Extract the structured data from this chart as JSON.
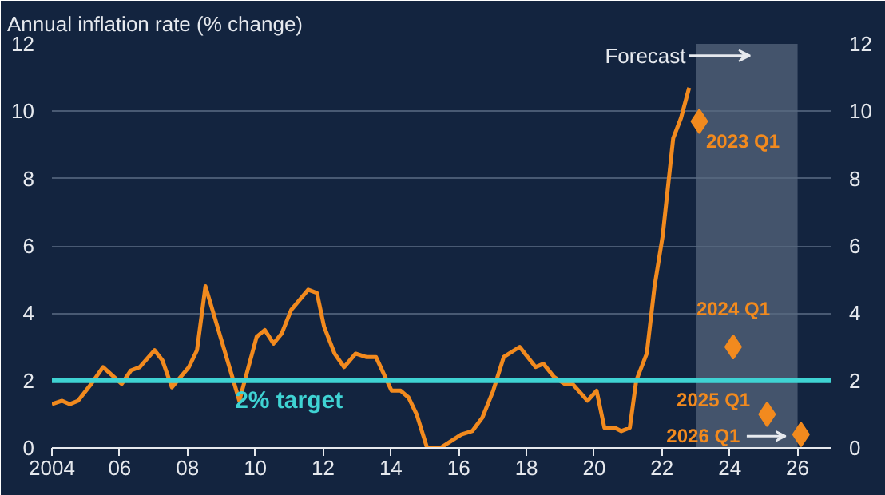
{
  "chart_data": {
    "type": "line",
    "title": "Annual inflation rate (% change)",
    "series": [
      {
        "type": "line",
        "color": "#f28a1e",
        "x": [
          2004.0,
          2004.3,
          2004.53,
          2004.77,
          2005.16,
          2005.51,
          2006.06,
          2006.33,
          2006.59,
          2007.03,
          2007.26,
          2007.54,
          2008.04,
          2008.28,
          2008.53,
          2009.06,
          2009.53,
          2010.04,
          2010.28,
          2010.54,
          2010.78,
          2011.06,
          2011.56,
          2011.82,
          2012.03,
          2012.34,
          2012.62,
          2012.96,
          2013.27,
          2013.56,
          2014.02,
          2014.29,
          2014.52,
          2014.76,
          2015.07,
          2015.46,
          2016.08,
          2016.4,
          2016.7,
          2017.02,
          2017.33,
          2017.8,
          2018.27,
          2018.5,
          2018.82,
          2019.13,
          2019.36,
          2019.8,
          2020.07,
          2020.3,
          2020.61,
          2020.8,
          2021.05,
          2021.24,
          2021.55,
          2021.78,
          2022.02,
          2022.33,
          2022.56,
          2022.8
        ],
        "values": [
          1.3,
          1.4,
          1.3,
          1.4,
          1.9,
          2.4,
          1.9,
          2.3,
          2.4,
          2.9,
          2.6,
          1.8,
          2.4,
          2.9,
          4.8,
          3.0,
          1.4,
          3.3,
          3.5,
          3.1,
          3.4,
          4.1,
          4.7,
          4.6,
          3.6,
          2.8,
          2.4,
          2.8,
          2.7,
          2.7,
          1.7,
          1.7,
          1.5,
          1.0,
          0.0,
          0.0,
          0.4,
          0.5,
          0.9,
          1.7,
          2.7,
          3.0,
          2.4,
          2.5,
          2.1,
          1.9,
          1.9,
          1.4,
          1.7,
          0.6,
          0.6,
          0.5,
          0.6,
          2.0,
          2.8,
          4.8,
          6.3,
          9.2,
          9.8,
          10.7
        ]
      },
      {
        "type": "scatter",
        "marker": "diamond",
        "color": "#f28a1e",
        "x": [
          2023.1,
          2024.1,
          2025.1,
          2026.1
        ],
        "values": [
          9.7,
          3.0,
          1.0,
          0.4
        ]
      }
    ],
    "xlim": [
      2004,
      2027
    ],
    "xticks": [
      {
        "value": 2004,
        "label": "2004"
      },
      {
        "value": 2006,
        "label": "06"
      },
      {
        "value": 2008,
        "label": "08"
      },
      {
        "value": 2010,
        "label": "10"
      },
      {
        "value": 2012,
        "label": "12"
      },
      {
        "value": 2014,
        "label": "14"
      },
      {
        "value": 2016,
        "label": "16"
      },
      {
        "value": 2018,
        "label": "18"
      },
      {
        "value": 2020,
        "label": "20"
      },
      {
        "value": 2022,
        "label": "22"
      },
      {
        "value": 2024,
        "label": "24"
      },
      {
        "value": 2026,
        "label": "26"
      }
    ],
    "ylim": [
      0,
      12
    ],
    "yticks": [
      0,
      2,
      4,
      6,
      8,
      10,
      12
    ],
    "y2lim": [
      0,
      12
    ],
    "y2ticks": [
      0,
      2,
      4,
      6,
      8,
      10,
      12
    ],
    "grid": "y",
    "ref_lines": [
      {
        "axis": "y",
        "value": 2,
        "label": "2% target",
        "color": "#3fd3d3"
      }
    ],
    "bands": [
      {
        "axis": "x",
        "from": 2023,
        "to": 2026,
        "label": "Forecast",
        "color": "#5a6a80"
      }
    ],
    "annotations": [
      {
        "text": "2023 Q1",
        "x": 2023.1,
        "y": 9.7
      },
      {
        "text": "2024 Q1",
        "x": 2024.1,
        "y": 3.0
      },
      {
        "text": "2025 Q1",
        "x": 2025.1,
        "y": 1.0
      },
      "2026 Q1"
    ]
  }
}
